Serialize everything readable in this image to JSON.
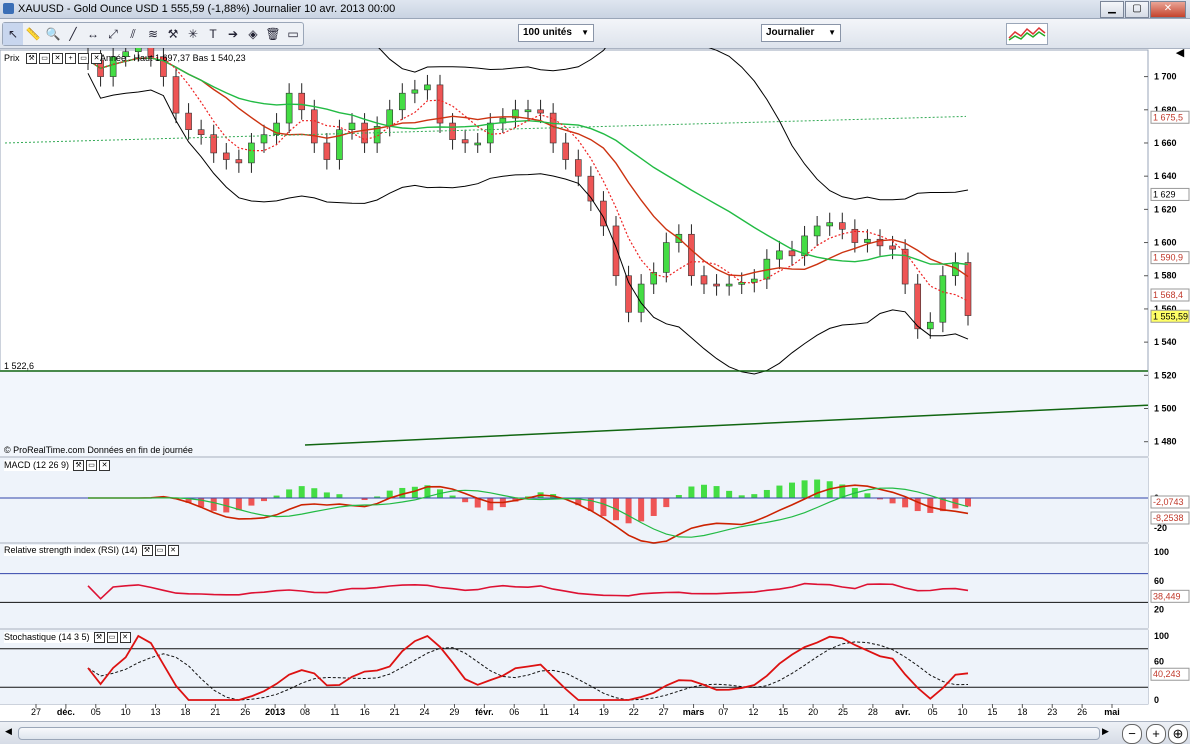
{
  "window": {
    "title": "XAUUSD - Gold Ounce USD    1 555,59 (-1,88%)    Journalier  10 avr. 2013 00:00"
  },
  "toolbar": {
    "units": "100 unités",
    "period": "Journalier",
    "tools": [
      "cursor-icon",
      "ruler-icon",
      "zoom-icon",
      "line-icon",
      "horizontal-line-icon",
      "trend-line-icon",
      "channel-icon",
      "fibonacci-icon",
      "hammer-icon",
      "gann-icon",
      "text-icon",
      "arrow-icon",
      "marker-icon",
      "delete-icon",
      "rectangle-icon"
    ]
  },
  "price_panel": {
    "label": "Prix",
    "legend": "Année : Haut 1 697,37  Bas 1 540,23",
    "support_label": "1 522,6",
    "source": "© ProRealTime.com  Données en fin de journée",
    "axis_ticks": [
      "1 700",
      "1 680",
      "1 660",
      "1 640",
      "1 620",
      "1 600",
      "1 580",
      "1 560",
      "1 540",
      "1 520",
      "1 500",
      "1 480"
    ],
    "tags": [
      {
        "text": "1 675,5",
        "color": "#c0392b"
      },
      {
        "text": "1 629",
        "color": "#000000"
      },
      {
        "text": "1 590,9",
        "color": "#c0392b"
      },
      {
        "text": "1 568,4",
        "color": "#c0392b"
      },
      {
        "text": "1 555,59",
        "color": "#000000",
        "bg": "#ffff66"
      }
    ]
  },
  "macd_panel": {
    "label": "MACD (12 26 9)",
    "axis_ticks": [
      "0",
      "-20"
    ],
    "tags": [
      {
        "text": "-2,0743",
        "color": "#c0392b"
      },
      {
        "text": "-8,2538",
        "color": "#c0392b"
      }
    ]
  },
  "rsi_panel": {
    "label": "Relative strength index (RSI) (14)",
    "axis_ticks": [
      "100",
      "60",
      "20"
    ],
    "tags": [
      {
        "text": "38,449",
        "color": "#c0392b"
      }
    ]
  },
  "stoch_panel": {
    "label": "Stochastique (14 3 5)",
    "axis_ticks": [
      "100",
      "60",
      "0"
    ],
    "tags": [
      {
        "text": "40,243",
        "color": "#c0392b"
      }
    ]
  },
  "x_axis": [
    "27",
    "déc.",
    "05",
    "10",
    "13",
    "18",
    "21",
    "26",
    "2013",
    "08",
    "11",
    "16",
    "21",
    "24",
    "29",
    "févr.",
    "06",
    "11",
    "14",
    "19",
    "22",
    "27",
    "mars",
    "07",
    "12",
    "15",
    "20",
    "25",
    "28",
    "avr.",
    "05",
    "10",
    "15",
    "18",
    "23",
    "26",
    "mai"
  ],
  "chart_data": {
    "type": "candlestick",
    "title": "XAUUSD - Gold Ounce USD",
    "ylim": [
      1475,
      1710
    ],
    "ohlc_close": [
      1710,
      1700,
      1712,
      1715,
      1718,
      1712,
      1700,
      1678,
      1668,
      1665,
      1654,
      1650,
      1648,
      1660,
      1665,
      1672,
      1690,
      1680,
      1660,
      1650,
      1668,
      1672,
      1660,
      1670,
      1680,
      1690,
      1692,
      1695,
      1672,
      1662,
      1660,
      1660,
      1672,
      1675,
      1680,
      1680,
      1678,
      1660,
      1650,
      1640,
      1625,
      1610,
      1580,
      1558,
      1575,
      1582,
      1600,
      1605,
      1580,
      1575,
      1574,
      1575,
      1576,
      1578,
      1590,
      1595,
      1592,
      1604,
      1610,
      1612,
      1608,
      1600,
      1602,
      1598,
      1596,
      1575,
      1548,
      1552,
      1580,
      1588,
      1556
    ],
    "series": [
      {
        "name": "MACD",
        "unit": "value"
      },
      {
        "name": "RSI (14)"
      },
      {
        "name": "Stochastique (14 3 5)"
      }
    ]
  }
}
